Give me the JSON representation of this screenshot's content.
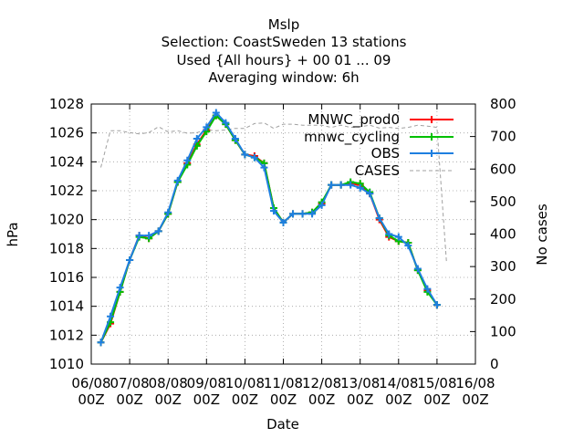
{
  "title_lines": [
    "Mslp",
    "Selection: CoastSweden     13 stations",
    "Used {All hours} + 00 01 ... 09",
    "Averaging window:  6h"
  ],
  "chart_data": {
    "type": "line",
    "xlabel": "Date",
    "ylabel": "hPa",
    "y2label": "No cases",
    "xlim": [
      0,
      10
    ],
    "ylim": [
      1010,
      1028
    ],
    "y2lim": [
      0,
      800
    ],
    "grid": true,
    "legend_position": "top-right",
    "x_ticks": [
      {
        "x": 0,
        "l1": "06/08",
        "l2": "00Z"
      },
      {
        "x": 1,
        "l1": "07/08",
        "l2": "00Z"
      },
      {
        "x": 2,
        "l1": "08/08",
        "l2": "00Z"
      },
      {
        "x": 3,
        "l1": "09/08",
        "l2": "00Z"
      },
      {
        "x": 4,
        "l1": "10/08",
        "l2": "00Z"
      },
      {
        "x": 5,
        "l1": "11/08",
        "l2": "00Z"
      },
      {
        "x": 6,
        "l1": "12/08",
        "l2": "00Z"
      },
      {
        "x": 7,
        "l1": "13/08",
        "l2": "00Z"
      },
      {
        "x": 8,
        "l1": "14/08",
        "l2": "00Z"
      },
      {
        "x": 9,
        "l1": "15/08",
        "l2": "00Z"
      },
      {
        "x": 10,
        "l1": "16/08",
        "l2": "00Z"
      }
    ],
    "y_ticks": [
      "1010",
      "1012",
      "1014",
      "1016",
      "1018",
      "1020",
      "1022",
      "1024",
      "1026",
      "1028"
    ],
    "y2_ticks": [
      "0",
      "100",
      "200",
      "300",
      "400",
      "500",
      "600",
      "700",
      "800"
    ],
    "x": [
      0.25,
      0.5,
      0.75,
      1.0,
      1.25,
      1.5,
      1.75,
      2.0,
      2.25,
      2.5,
      2.75,
      3.0,
      3.25,
      3.5,
      3.75,
      4.0,
      4.25,
      4.5,
      4.75,
      5.0,
      5.25,
      5.5,
      5.75,
      6.0,
      6.25,
      6.5,
      6.75,
      7.0,
      7.25,
      7.5,
      7.75,
      8.0,
      8.25,
      8.5,
      8.75,
      9.0,
      9.25
    ],
    "series": [
      {
        "name": "MNWC_prod0",
        "color": "#ff0000",
        "marker": "plus",
        "values": [
          1011.5,
          1012.8,
          1015.0,
          1017.2,
          1018.9,
          1018.7,
          1019.2,
          1020.4,
          1022.6,
          1023.9,
          1025.2,
          1026.2,
          1027.2,
          1026.6,
          1025.5,
          1024.5,
          1024.4,
          1023.9,
          1020.8,
          1019.8,
          1020.4,
          1020.4,
          1020.5,
          1021.1,
          1022.4,
          1022.4,
          1022.5,
          1022.4,
          1021.8,
          1020.0,
          1018.8,
          1018.5,
          1018.4,
          1016.5,
          1015.1,
          1014.1,
          null
        ]
      },
      {
        "name": "mnwc_cycling",
        "color": "#00c000",
        "marker": "plus",
        "values": [
          1011.5,
          1012.9,
          1015.0,
          1017.2,
          1018.8,
          1018.7,
          1019.2,
          1020.4,
          1022.6,
          1023.8,
          1025.1,
          1026.1,
          1027.2,
          1026.6,
          1025.5,
          1024.5,
          1024.3,
          1023.9,
          1020.8,
          1019.8,
          1020.4,
          1020.4,
          1020.5,
          1021.2,
          1022.4,
          1022.4,
          1022.6,
          1022.5,
          1021.9,
          1020.1,
          1018.9,
          1018.5,
          1018.4,
          1016.5,
          1015.0,
          1014.1,
          null
        ]
      },
      {
        "name": "OBS",
        "color": "#1e7fe0",
        "marker": "plus",
        "values": [
          1011.5,
          1013.3,
          1015.3,
          1017.2,
          1018.9,
          1018.9,
          1019.2,
          1020.5,
          1022.7,
          1024.1,
          1025.6,
          1026.4,
          1027.4,
          1026.7,
          1025.6,
          1024.5,
          1024.3,
          1023.6,
          1020.6,
          1019.8,
          1020.4,
          1020.4,
          1020.4,
          1021.0,
          1022.4,
          1022.4,
          1022.4,
          1022.2,
          1021.8,
          1020.1,
          1019.0,
          1018.8,
          1018.2,
          1016.6,
          1015.2,
          1014.1,
          null
        ]
      },
      {
        "name": "CASES",
        "color": "#a0a0a0",
        "marker": "none",
        "axis": "y2",
        "values": [
          605,
          718,
          718,
          712,
          708,
          712,
          730,
          714,
          718,
          710,
          712,
          720,
          718,
          720,
          725,
          725,
          740,
          742,
          725,
          738,
          738,
          735,
          735,
          735,
          728,
          735,
          728,
          730,
          735,
          726,
          728,
          725,
          728,
          735,
          732,
          728,
          310
        ]
      }
    ]
  }
}
